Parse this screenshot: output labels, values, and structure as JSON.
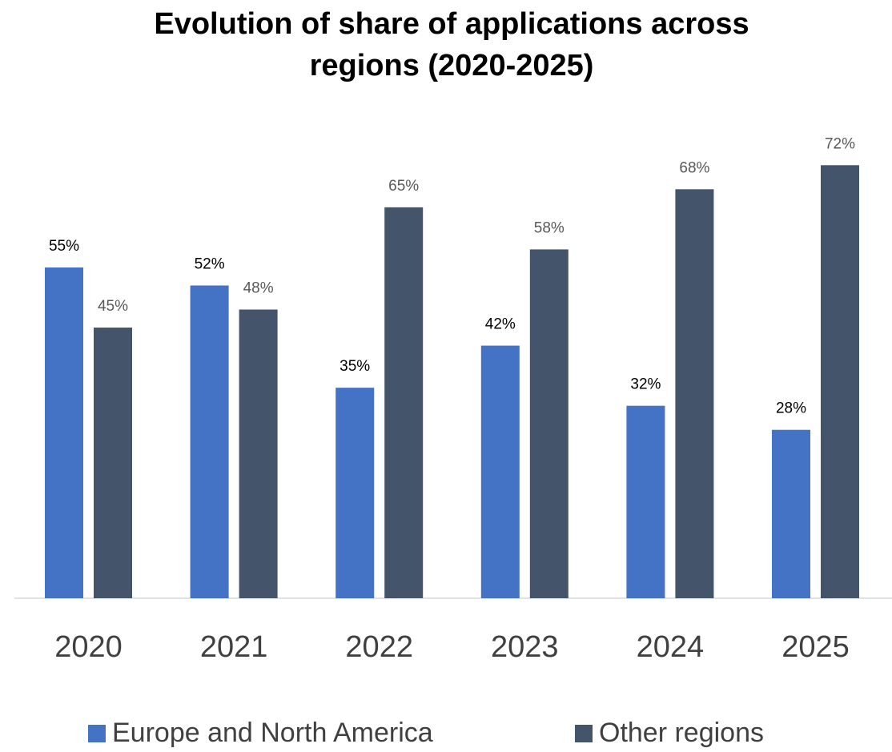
{
  "chart_data": {
    "type": "bar",
    "title": "Evolution of share of applications across regions (2020-2025)",
    "categories": [
      "2020",
      "2021",
      "2022",
      "2023",
      "2024",
      "2025"
    ],
    "series": [
      {
        "name": "Europe and North America",
        "color": "#4472c4",
        "values": [
          55,
          52,
          35,
          42,
          32,
          28
        ],
        "value_labels": [
          "55%",
          "52%",
          "35%",
          "42%",
          "32%",
          "28%"
        ]
      },
      {
        "name": "Other regions",
        "color": "#44546a",
        "values": [
          45,
          48,
          65,
          58,
          68,
          72
        ],
        "value_labels": [
          "45%",
          "48%",
          "65%",
          "58%",
          "68%",
          "72%"
        ]
      }
    ]
  }
}
